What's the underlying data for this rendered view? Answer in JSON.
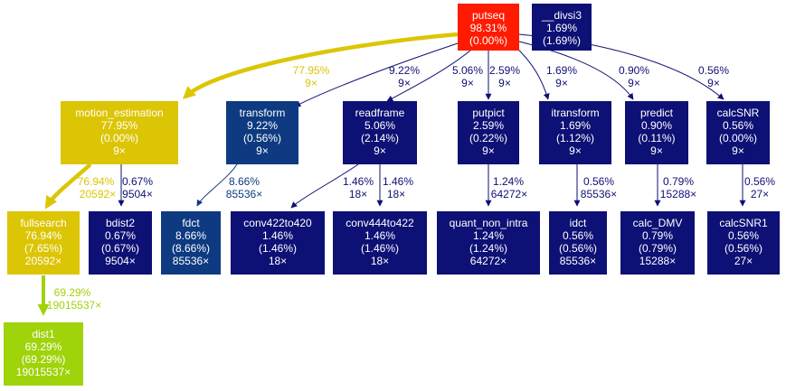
{
  "colors": {
    "red": "#ff1b00",
    "navy": "#0d1074",
    "mid_blue": "#0d3a80",
    "gold": "#dcc505",
    "lime": "#9fd30a",
    "white": "#ffffff",
    "edge_navy": "#0d1074",
    "edge_blue": "#0d3a80",
    "edge_gold": "#dcc505",
    "edge_lime": "#9fd30a"
  },
  "nodes": {
    "putseq": {
      "name": "putseq",
      "pct": "98.31%",
      "self": "(0.00%)",
      "calls": ""
    },
    "divsi3": {
      "name": "__divsi3",
      "pct": "1.69%",
      "self": "(1.69%)",
      "calls": ""
    },
    "motion_estimation": {
      "name": "motion_estimation",
      "pct": "77.95%",
      "self": "(0.00%)",
      "calls": "9×"
    },
    "transform": {
      "name": "transform",
      "pct": "9.22%",
      "self": "(0.56%)",
      "calls": "9×"
    },
    "readframe": {
      "name": "readframe",
      "pct": "5.06%",
      "self": "(2.14%)",
      "calls": "9×"
    },
    "putpict": {
      "name": "putpict",
      "pct": "2.59%",
      "self": "(0.22%)",
      "calls": "9×"
    },
    "itransform": {
      "name": "itransform",
      "pct": "1.69%",
      "self": "(1.12%)",
      "calls": "9×"
    },
    "predict": {
      "name": "predict",
      "pct": "0.90%",
      "self": "(0.11%)",
      "calls": "9×"
    },
    "calcSNR": {
      "name": "calcSNR",
      "pct": "0.56%",
      "self": "(0.00%)",
      "calls": "9×"
    },
    "fullsearch": {
      "name": "fullsearch",
      "pct": "76.94%",
      "self": "(7.65%)",
      "calls": "20592×"
    },
    "bdist2": {
      "name": "bdist2",
      "pct": "0.67%",
      "self": "(0.67%)",
      "calls": "9504×"
    },
    "fdct": {
      "name": "fdct",
      "pct": "8.66%",
      "self": "(8.66%)",
      "calls": "85536×"
    },
    "conv422to420": {
      "name": "conv422to420",
      "pct": "1.46%",
      "self": "(1.46%)",
      "calls": "18×"
    },
    "conv444to422": {
      "name": "conv444to422",
      "pct": "1.46%",
      "self": "(1.46%)",
      "calls": "18×"
    },
    "quant_non_intra": {
      "name": "quant_non_intra",
      "pct": "1.24%",
      "self": "(1.24%)",
      "calls": "64272×"
    },
    "idct": {
      "name": "idct",
      "pct": "0.56%",
      "self": "(0.56%)",
      "calls": "85536×"
    },
    "calc_DMV": {
      "name": "calc_DMV",
      "pct": "0.79%",
      "self": "(0.79%)",
      "calls": "15288×"
    },
    "calcSNR1": {
      "name": "calcSNR1",
      "pct": "0.56%",
      "self": "(0.56%)",
      "calls": "27×"
    },
    "dist1": {
      "name": "dist1",
      "pct": "69.29%",
      "self": "(69.29%)",
      "calls": "19015537×"
    }
  },
  "edges": {
    "putseq_motion_estimation": {
      "pct": "77.95%",
      "calls": "9×"
    },
    "putseq_transform": {
      "pct": "9.22%",
      "calls": "9×"
    },
    "putseq_readframe": {
      "pct": "5.06%",
      "calls": "9×"
    },
    "putseq_putpict": {
      "pct": "2.59%",
      "calls": "9×"
    },
    "putseq_itransform": {
      "pct": "1.69%",
      "calls": "9×"
    },
    "putseq_predict": {
      "pct": "0.90%",
      "calls": "9×"
    },
    "putseq_calcSNR": {
      "pct": "0.56%",
      "calls": "9×"
    },
    "motion_estimation_fullsearch": {
      "pct": "76.94%",
      "calls": "20592×"
    },
    "motion_estimation_bdist2": {
      "pct": "0.67%",
      "calls": "9504×"
    },
    "transform_fdct": {
      "pct": "8.66%",
      "calls": "85536×"
    },
    "readframe_conv422to420": {
      "pct": "1.46%",
      "calls": "18×"
    },
    "readframe_conv444to422": {
      "pct": "1.46%",
      "calls": "18×"
    },
    "putpict_quant_non_intra": {
      "pct": "1.24%",
      "calls": "64272×"
    },
    "itransform_idct": {
      "pct": "0.56%",
      "calls": "85536×"
    },
    "predict_calc_DMV": {
      "pct": "0.79%",
      "calls": "15288×"
    },
    "calcSNR_calcSNR1": {
      "pct": "0.56%",
      "calls": "27×"
    },
    "fullsearch_dist1": {
      "pct": "69.29%",
      "calls": "19015537×"
    }
  }
}
